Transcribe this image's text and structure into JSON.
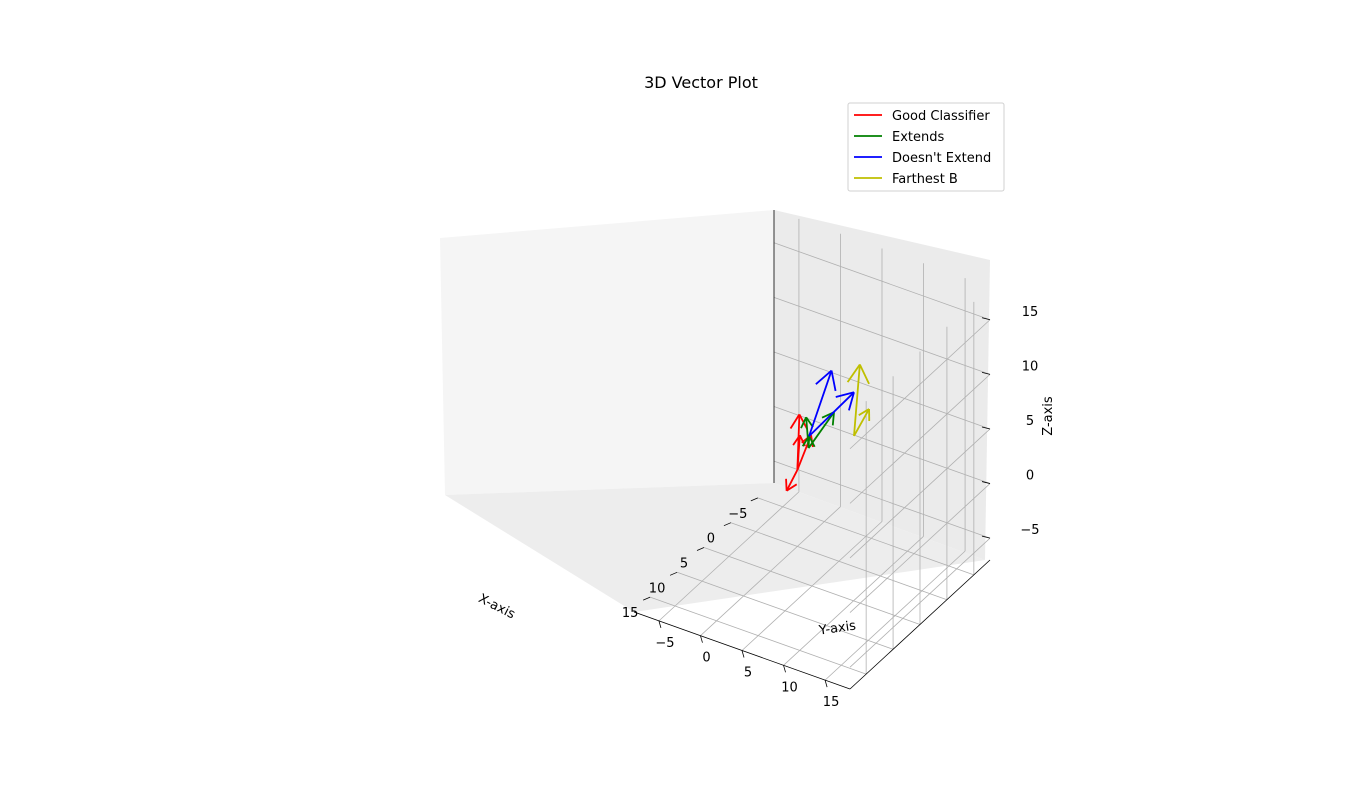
{
  "chart_data": {
    "type": "3d-quiver",
    "title": "3D Vector Plot",
    "xlabel": "X-axis",
    "ylabel": "Y-axis",
    "zlabel": "Z-axis",
    "xlim": [
      -8,
      18
    ],
    "ylim": [
      -8,
      18
    ],
    "zlim": [
      -7,
      18
    ],
    "xticks": [
      "−5",
      "0",
      "5",
      "10",
      "15"
    ],
    "yticks": [
      "−5",
      "0",
      "5",
      "10",
      "15"
    ],
    "zticks": [
      "−5",
      "0",
      "5",
      "10",
      "15"
    ],
    "grid": true,
    "legend_position": "top-right",
    "series": [
      {
        "name": "Good Classifier",
        "color": "#ff0000",
        "vectors": [
          {
            "start": [
              0,
              0,
              0
            ],
            "end": [
              -5,
              -3,
              2
            ]
          },
          {
            "start": [
              0,
              0,
              0
            ],
            "end": [
              -2,
              -1,
              2
            ]
          },
          {
            "start": [
              0,
              0,
              0
            ],
            "end": [
              -1,
              1,
              3
            ]
          },
          {
            "start": [
              0,
              0,
              0
            ],
            "end": [
              2,
              0,
              -1
            ]
          }
        ]
      },
      {
        "name": "Extends",
        "color": "#008000",
        "vectors": [
          {
            "start": [
              1,
              2,
              3
            ],
            "end": [
              3,
              3,
              7
            ]
          },
          {
            "start": [
              1,
              2,
              3
            ],
            "end": [
              4,
              7,
              9
            ]
          },
          {
            "start": [
              1,
              2,
              3
            ],
            "end": [
              4,
              4,
              6
            ]
          }
        ]
      },
      {
        "name": "Doesn't Extend",
        "color": "#0000ff",
        "vectors": [
          {
            "start": [
              4,
              4,
              6
            ],
            "end": [
              6,
              8,
              14
            ]
          },
          {
            "start": [
              4,
              4,
              6
            ],
            "end": [
              8,
              12,
              14
            ]
          }
        ]
      },
      {
        "name": "Farthest B",
        "color": "#bfbf00",
        "vectors": [
          {
            "start": [
              8,
              12,
              10
            ],
            "end": [
              10,
              14,
              18
            ]
          },
          {
            "start": [
              8,
              12,
              10
            ],
            "end": [
              16,
              19,
              18
            ]
          }
        ]
      }
    ]
  }
}
